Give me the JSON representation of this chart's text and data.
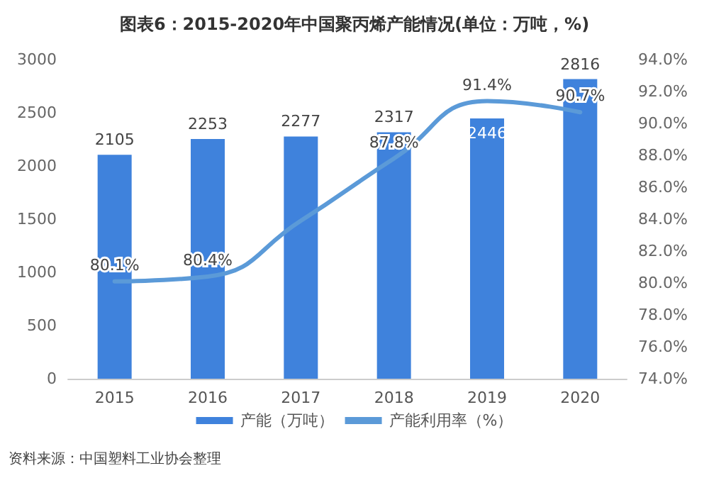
{
  "chart_data": {
    "type": "bar",
    "title": "图表6：2015-2020年中国聚丙烯产能情况(单位：万吨，%)",
    "categories": [
      "2015",
      "2016",
      "2017",
      "2018",
      "2019",
      "2020"
    ],
    "series": [
      {
        "name": "产能（万吨）",
        "color": "#3f82dc",
        "values": [
          2105,
          2253,
          2277,
          2317,
          2446,
          2816
        ],
        "value_labels": [
          "2105",
          "2253",
          "2277",
          "2317",
          "2446",
          "2816"
        ]
      },
      {
        "name": "产能利用率（%）",
        "type": "line",
        "axis": "y2",
        "color": "#5b9ad8",
        "values": [
          80.1,
          80.4,
          83.9,
          87.8,
          91.4,
          90.7
        ],
        "value_labels": [
          "80.1%",
          "80.4%",
          null,
          "87.8%",
          "91.4%",
          "90.7%"
        ]
      }
    ],
    "ylim": [
      0,
      3000
    ],
    "yticks": [
      0,
      500,
      1000,
      1500,
      2000,
      2500,
      3000
    ],
    "y2lim": [
      74,
      94
    ],
    "y2ticks": [
      {
        "value": 74,
        "label": "74.0%"
      },
      {
        "value": 76,
        "label": "76.0%"
      },
      {
        "value": 78,
        "label": "78.0%"
      },
      {
        "value": 80,
        "label": "80.0%"
      },
      {
        "value": 82,
        "label": "82.0%"
      },
      {
        "value": 84,
        "label": "84.0%"
      },
      {
        "value": 86,
        "label": "86.0%"
      },
      {
        "value": 88,
        "label": "88.0%"
      },
      {
        "value": 90,
        "label": "90.0%"
      },
      {
        "value": 92,
        "label": "92.0%"
      },
      {
        "value": 94,
        "label": "94.0%"
      }
    ],
    "grid": false,
    "legend": "bottom",
    "marker": "none",
    "line_style": "solid",
    "annotations": [
      "资料来源：中国塑料工业协会整理"
    ]
  }
}
